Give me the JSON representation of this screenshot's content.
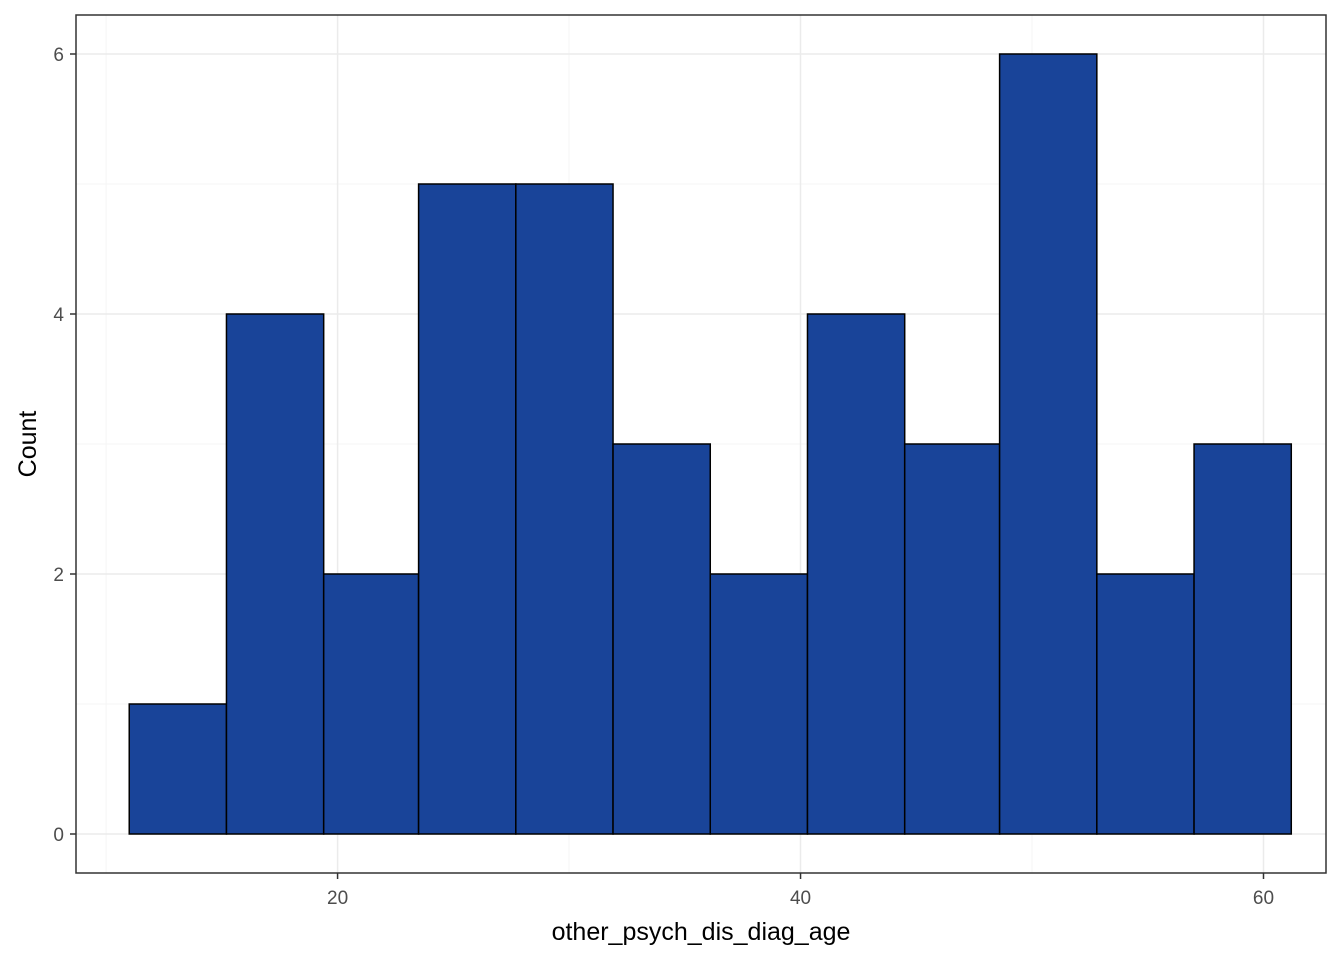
{
  "chart_data": {
    "type": "bar",
    "subtype": "histogram",
    "xlabel": "other_psych_dis_diag_age",
    "ylabel": "Count",
    "xlim": [
      8.7,
      62.7
    ],
    "ylim": [
      -0.3,
      6.3
    ],
    "x_ticks": [
      20,
      40,
      60
    ],
    "y_ticks": [
      0,
      2,
      4,
      6
    ],
    "grid": true,
    "bins": [
      {
        "x0": 11.0,
        "x1": 15.2,
        "count": 1
      },
      {
        "x0": 15.2,
        "x1": 19.4,
        "count": 4
      },
      {
        "x0": 19.4,
        "x1": 23.5,
        "count": 2
      },
      {
        "x0": 23.5,
        "x1": 27.7,
        "count": 5
      },
      {
        "x0": 27.7,
        "x1": 31.9,
        "count": 5
      },
      {
        "x0": 31.9,
        "x1": 36.1,
        "count": 3
      },
      {
        "x0": 36.1,
        "x1": 40.3,
        "count": 2
      },
      {
        "x0": 40.3,
        "x1": 44.5,
        "count": 4
      },
      {
        "x0": 44.5,
        "x1": 48.6,
        "count": 3
      },
      {
        "x0": 48.6,
        "x1": 52.8,
        "count": 6
      },
      {
        "x0": 52.8,
        "x1": 57.0,
        "count": 2
      },
      {
        "x0": 57.0,
        "x1": 61.2,
        "count": 3
      }
    ],
    "colors": {
      "bar_fill": "#194499",
      "bar_stroke": "#000000",
      "grid_major": "#ebebeb",
      "grid_minor": "#f5f5f5",
      "panel_border": "#333333"
    }
  }
}
